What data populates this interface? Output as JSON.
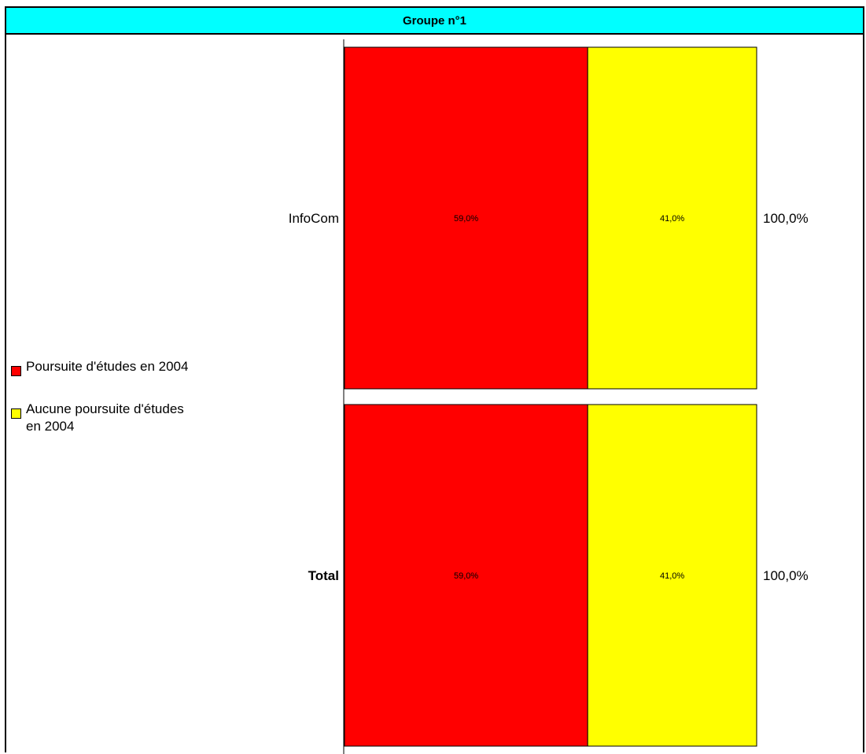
{
  "chart_data": {
    "type": "bar",
    "orientation": "horizontal",
    "stacked": true,
    "title": "Groupe n°1",
    "categories": [
      "InfoCom",
      "Total"
    ],
    "series": [
      {
        "name": "Poursuite d'études en 2004",
        "color": "#ff0000",
        "values": [
          59.0,
          59.0
        ],
        "labels": [
          "59,0%",
          "59,0%"
        ]
      },
      {
        "name": "Aucune poursuite d'études en 2004",
        "color": "#ffff00",
        "values": [
          41.0,
          41.0
        ],
        "labels": [
          "41,0%",
          "41,0%"
        ]
      }
    ],
    "totals": [
      "100,0%",
      "100,0%"
    ],
    "xlim": [
      0,
      100
    ],
    "legend_position": "left",
    "title_background": "#00ffff"
  }
}
